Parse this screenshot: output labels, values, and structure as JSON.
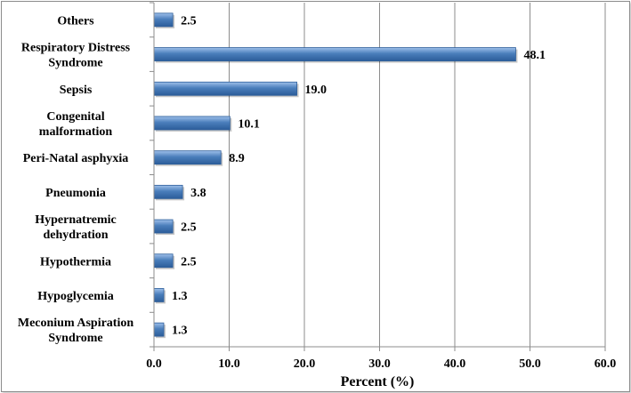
{
  "chart_data": {
    "type": "bar",
    "orientation": "horizontal",
    "categories": [
      [
        "Others"
      ],
      [
        "Respiratory Distress",
        "Syndrome"
      ],
      [
        "Sepsis"
      ],
      [
        "Congenital",
        "malformation"
      ],
      [
        "Peri-Natal asphyxia"
      ],
      [
        "Pneumonia"
      ],
      [
        "Hypernatremic",
        "dehydration"
      ],
      [
        "Hypothermia"
      ],
      [
        "Hypoglycemia"
      ],
      [
        "Meconium Aspiration",
        "Syndrome"
      ]
    ],
    "values": [
      2.5,
      48.1,
      19.0,
      10.1,
      8.9,
      3.8,
      2.5,
      2.5,
      1.3,
      1.3
    ],
    "value_labels": [
      "2.5",
      "48.1",
      "19.0",
      "10.1",
      "8.9",
      "3.8",
      "2.5",
      "2.5",
      "1.3",
      "1.3"
    ],
    "xlabel": "Percent (%)",
    "ylabel": "",
    "title": "",
    "xlim": [
      0,
      60
    ],
    "xticks": [
      "0.0",
      "10.0",
      "20.0",
      "30.0",
      "40.0",
      "50.0",
      "60.0"
    ],
    "grid": true,
    "legend": "none",
    "colors": {
      "bar": "#4a7ebb",
      "bar_light": "#8db3e2",
      "bar_dark": "#2c5d9a",
      "grid": "#8c8c8c"
    }
  }
}
